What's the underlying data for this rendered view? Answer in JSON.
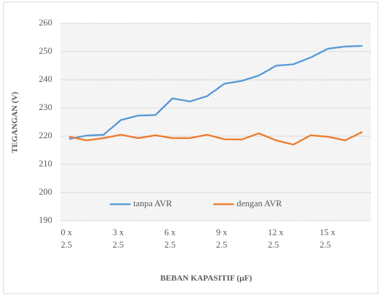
{
  "chart_data": {
    "type": "line",
    "categories": [
      "0 x 2.5",
      null,
      null,
      "3 x 2.5",
      null,
      null,
      "6 x 2.5",
      null,
      null,
      "9 x 2.5",
      null,
      null,
      "12 x 2.5",
      null,
      null,
      "15 x 2.5",
      null,
      null
    ],
    "series": [
      {
        "name": "tanpa AVR",
        "color": "#5b9bd5",
        "values": [
          219,
          220.2,
          220.5,
          225.7,
          227.3,
          227.5,
          233.4,
          232.3,
          234.2,
          238.6,
          239.6,
          241.5,
          245,
          245.5,
          247.9,
          251,
          251.8,
          252
        ]
      },
      {
        "name": "dengan AVR",
        "color": "#ed7d31",
        "values": [
          219.8,
          218.5,
          219.3,
          220.5,
          219.3,
          220.3,
          219.3,
          219.3,
          220.5,
          218.9,
          218.8,
          221,
          218.5,
          217,
          220.3,
          219.8,
          218.5,
          221.5
        ]
      }
    ],
    "ylim": [
      190,
      260
    ],
    "yticks": [
      190,
      200,
      210,
      220,
      230,
      240,
      250,
      260
    ],
    "ylabel": "TEGANGAN  (V)",
    "xlabel": "BEBAN KAPASITIF  (µF)",
    "legend": "bottom",
    "grid": true
  }
}
